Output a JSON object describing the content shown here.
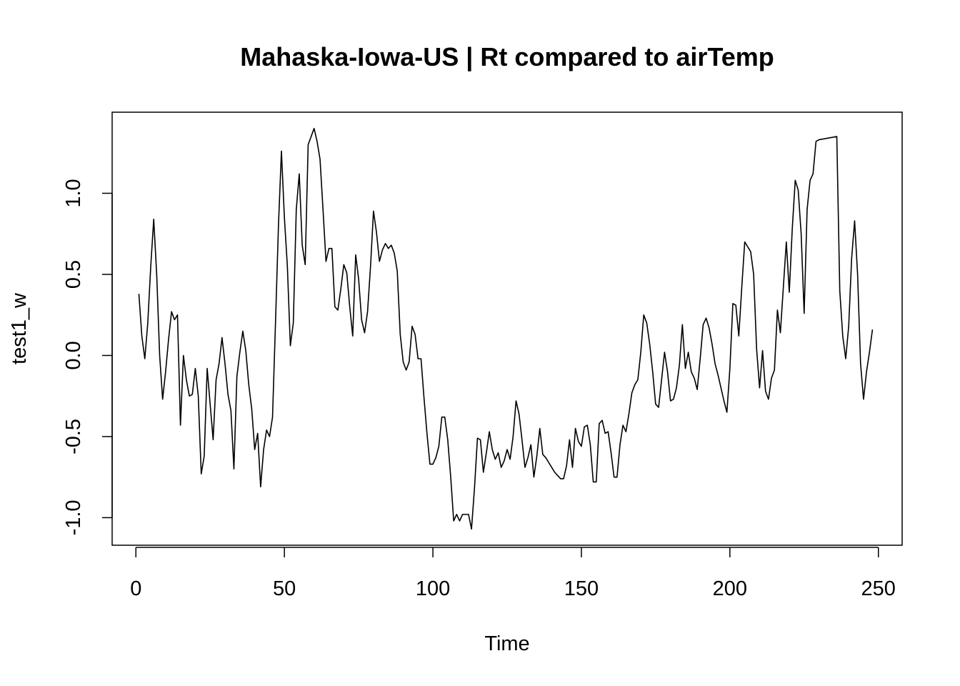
{
  "chart_data": {
    "type": "line",
    "title": "Mahaska-Iowa-US | Rt compared to airTemp",
    "xlabel": "Time",
    "ylabel": "test1_w",
    "xlim": [
      -8,
      258
    ],
    "ylim": [
      -1.17,
      1.5
    ],
    "x_ticks": [
      0,
      50,
      100,
      150,
      200,
      250
    ],
    "x_tick_labels": [
      "0",
      "50",
      "100",
      "150",
      "200",
      "250"
    ],
    "y_ticks": [
      -1.0,
      -0.5,
      0.0,
      0.5,
      1.0
    ],
    "y_tick_labels": [
      "-1.0",
      "-0.5",
      "0.0",
      "0.5",
      "1.0"
    ],
    "grid": false,
    "series": [
      {
        "color": "#000000",
        "x": [
          1,
          2,
          3,
          4,
          5,
          6,
          7,
          8,
          9,
          10,
          11,
          12,
          13,
          14,
          15,
          16,
          17,
          18,
          19,
          20,
          21,
          22,
          23,
          24,
          25,
          26,
          27,
          28,
          29,
          30,
          31,
          32,
          33,
          34,
          35,
          36,
          37,
          38,
          39,
          40,
          41,
          42,
          43,
          44,
          45,
          46,
          47,
          48,
          49,
          50,
          51,
          52,
          53,
          54,
          55,
          56,
          57,
          58,
          59,
          60,
          61,
          62,
          63,
          64,
          65,
          66,
          67,
          68,
          69,
          70,
          71,
          72,
          73,
          74,
          75,
          76,
          77,
          78,
          79,
          80,
          81,
          82,
          83,
          84,
          85,
          86,
          87,
          88,
          89,
          90,
          91,
          92,
          93,
          94,
          95,
          96,
          97,
          98,
          99,
          100,
          101,
          102,
          103,
          104,
          105,
          106,
          107,
          108,
          109,
          110,
          111,
          112,
          113,
          114,
          115,
          116,
          117,
          118,
          119,
          120,
          121,
          122,
          123,
          124,
          125,
          126,
          127,
          128,
          129,
          130,
          131,
          132,
          133,
          134,
          135,
          136,
          137,
          138,
          139,
          140,
          141,
          142,
          143,
          144,
          145,
          146,
          147,
          148,
          149,
          150,
          151,
          152,
          153,
          154,
          155,
          156,
          157,
          158,
          159,
          160,
          161,
          162,
          163,
          164,
          165,
          166,
          167,
          168,
          169,
          170,
          171,
          172,
          173,
          174,
          175,
          176,
          177,
          178,
          179,
          180,
          181,
          182,
          183,
          184,
          185,
          186,
          187,
          188,
          189,
          190,
          191,
          192,
          193,
          194,
          195,
          196,
          197,
          198,
          199,
          200,
          201,
          202,
          203,
          204,
          205,
          206,
          207,
          208,
          209,
          210,
          211,
          212,
          213,
          214,
          215,
          216,
          217,
          218,
          219,
          220,
          221,
          222,
          223,
          224,
          225,
          226,
          227,
          228,
          229,
          230,
          236,
          237,
          238,
          239,
          240,
          241,
          242,
          243,
          244,
          245,
          246,
          247,
          248
        ],
        "y": [
          0.38,
          0.12,
          -0.02,
          0.2,
          0.55,
          0.84,
          0.5,
          0.0,
          -0.27,
          -0.1,
          0.1,
          0.27,
          0.22,
          0.25,
          -0.43,
          0.0,
          -0.15,
          -0.25,
          -0.24,
          -0.08,
          -0.25,
          -0.73,
          -0.62,
          -0.08,
          -0.3,
          -0.52,
          -0.15,
          -0.05,
          0.11,
          -0.05,
          -0.24,
          -0.34,
          -0.7,
          -0.13,
          0.02,
          0.15,
          0.03,
          -0.18,
          -0.33,
          -0.58,
          -0.48,
          -0.81,
          -0.58,
          -0.46,
          -0.5,
          -0.38,
          0.2,
          0.8,
          1.26,
          0.85,
          0.55,
          0.06,
          0.2,
          0.9,
          1.12,
          0.68,
          0.56,
          1.3,
          1.35,
          1.4,
          1.32,
          1.21,
          0.9,
          0.58,
          0.66,
          0.66,
          0.3,
          0.28,
          0.41,
          0.56,
          0.51,
          0.3,
          0.12,
          0.62,
          0.47,
          0.22,
          0.14,
          0.27,
          0.55,
          0.89,
          0.76,
          0.58,
          0.65,
          0.69,
          0.66,
          0.68,
          0.63,
          0.52,
          0.13,
          -0.04,
          -0.09,
          -0.04,
          0.18,
          0.13,
          -0.02,
          -0.02,
          -0.26,
          -0.48,
          -0.67,
          -0.67,
          -0.63,
          -0.56,
          -0.38,
          -0.38,
          -0.52,
          -0.75,
          -1.02,
          -0.98,
          -1.02,
          -0.98,
          -0.98,
          -0.98,
          -1.07,
          -0.82,
          -0.51,
          -0.52,
          -0.72,
          -0.6,
          -0.47,
          -0.58,
          -0.64,
          -0.6,
          -0.69,
          -0.65,
          -0.58,
          -0.64,
          -0.5,
          -0.28,
          -0.36,
          -0.52,
          -0.69,
          -0.63,
          -0.55,
          -0.75,
          -0.62,
          -0.45,
          -0.61,
          -0.63,
          -0.66,
          -0.69,
          -0.72,
          -0.74,
          -0.76,
          -0.76,
          -0.68,
          -0.52,
          -0.69,
          -0.45,
          -0.53,
          -0.56,
          -0.44,
          -0.43,
          -0.55,
          -0.78,
          -0.78,
          -0.42,
          -0.4,
          -0.48,
          -0.47,
          -0.6,
          -0.75,
          -0.75,
          -0.55,
          -0.43,
          -0.47,
          -0.36,
          -0.23,
          -0.18,
          -0.15,
          0.02,
          0.25,
          0.2,
          0.07,
          -0.1,
          -0.3,
          -0.32,
          -0.15,
          0.02,
          -0.1,
          -0.28,
          -0.27,
          -0.2,
          -0.06,
          0.19,
          -0.08,
          0.02,
          -0.1,
          -0.14,
          -0.21,
          -0.02,
          0.19,
          0.23,
          0.17,
          0.07,
          -0.05,
          -0.12,
          -0.2,
          -0.28,
          -0.35,
          -0.08,
          0.32,
          0.31,
          0.12,
          0.42,
          0.7,
          0.67,
          0.64,
          0.5,
          0.04,
          -0.2,
          0.03,
          -0.22,
          -0.27,
          -0.14,
          -0.09,
          0.28,
          0.14,
          0.42,
          0.7,
          0.39,
          0.78,
          1.08,
          1.02,
          0.75,
          0.26,
          0.9,
          1.08,
          1.12,
          1.32,
          1.33,
          1.35,
          0.4,
          0.12,
          -0.02,
          0.18,
          0.6,
          0.83,
          0.5,
          -0.05,
          -0.27,
          -0.1,
          0.02,
          0.16
        ]
      }
    ]
  }
}
